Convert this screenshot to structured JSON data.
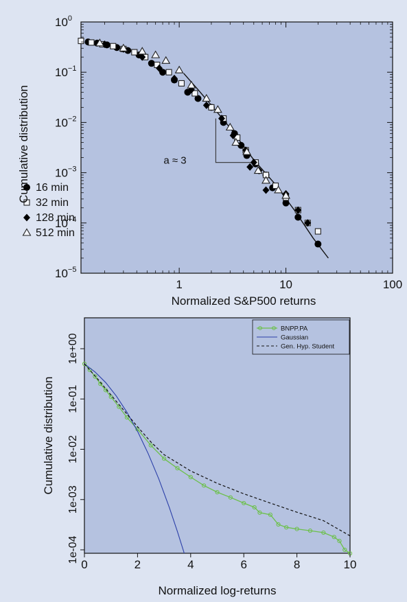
{
  "colors": {
    "page_background": "#dde4f2",
    "plot_background": "#b5c2e0",
    "green": "#6cc04a",
    "blue": "#2b3fa8"
  },
  "chart_data": [
    {
      "type": "scatter",
      "xlabel": "Normalized S&P500 returns",
      "ylabel": "Cumulative distribution",
      "x_scale": "log",
      "y_scale": "log",
      "xlim": [
        0.12,
        100
      ],
      "ylim": [
        1e-05,
        1
      ],
      "x_ticks": [
        {
          "value": 1,
          "label": "1"
        },
        {
          "value": 10,
          "label": "10"
        },
        {
          "value": 100,
          "label": "100"
        }
      ],
      "y_ticks": [
        {
          "value": 1,
          "base": "10",
          "exp": "0"
        },
        {
          "value": 0.1,
          "base": "10",
          "exp": "−1"
        },
        {
          "value": 0.01,
          "base": "10",
          "exp": "−2"
        },
        {
          "value": 0.001,
          "base": "10",
          "exp": "−3"
        },
        {
          "value": 0.0001,
          "base": "10",
          "exp": "−4"
        },
        {
          "value": 1e-05,
          "base": "10",
          "exp": "−5"
        }
      ],
      "grid": false,
      "legend_position": "lower-left",
      "annotation": "a ≈ 3",
      "slope_triangle": {
        "x1": 2.2,
        "x2": 5.5,
        "y_top": 0.012,
        "y_bottom": 0.0016
      },
      "fit_line": {
        "x": [
          1.1,
          1.5,
          2,
          3,
          5,
          8,
          12,
          18,
          25
        ],
        "y": [
          0.095,
          0.045,
          0.022,
          0.0078,
          0.0018,
          0.00058,
          0.00018,
          5e-05,
          2e-05
        ]
      },
      "series": [
        {
          "name": "16 min",
          "marker": "circle",
          "x": [
            0.14,
            0.17,
            0.21,
            0.26,
            0.33,
            0.42,
            0.55,
            0.7,
            0.9,
            1.2,
            1.5,
            2.0,
            2.6,
            3.3,
            3.8,
            4.3,
            5.2,
            6.5,
            7.5,
            10,
            13,
            20
          ],
          "y": [
            0.4,
            0.38,
            0.35,
            0.31,
            0.27,
            0.22,
            0.15,
            0.1,
            0.07,
            0.04,
            0.03,
            0.02,
            0.01,
            0.006,
            0.0035,
            0.0022,
            0.0015,
            0.0009,
            0.0005,
            0.00025,
            0.00013,
            3.8e-05
          ]
        },
        {
          "name": "32 min",
          "marker": "square",
          "x": [
            0.12,
            0.15,
            0.19,
            0.24,
            0.3,
            0.38,
            0.48,
            0.62,
            0.8,
            1.05,
            1.4,
            2.0,
            2.6,
            3.5,
            4.2,
            5.2,
            6.5,
            8,
            10,
            13,
            16,
            20
          ],
          "y": [
            0.42,
            0.39,
            0.36,
            0.33,
            0.29,
            0.25,
            0.2,
            0.14,
            0.1,
            0.06,
            0.038,
            0.02,
            0.012,
            0.005,
            0.0028,
            0.0016,
            0.0009,
            0.00055,
            0.00032,
            0.00018,
            0.0001,
            6.8e-05
          ]
        },
        {
          "name": "128 min",
          "marker": "diamond",
          "x": [
            0.2,
            0.3,
            0.45,
            0.65,
            0.9,
            1.3,
            1.8,
            2.5,
            3.2,
            4.2,
            4.6,
            5.0,
            5.6,
            6.5,
            10,
            13,
            16
          ],
          "y": [
            0.36,
            0.29,
            0.2,
            0.12,
            0.075,
            0.045,
            0.022,
            0.012,
            0.0055,
            0.0028,
            0.0013,
            0.0016,
            0.0011,
            0.00045,
            0.00038,
            0.00018,
            0.0001
          ]
        },
        {
          "name": "512 min",
          "marker": "triangle",
          "x": [
            0.18,
            0.3,
            0.45,
            0.6,
            0.75,
            1.0,
            1.3,
            1.8,
            2.3,
            3.0,
            3.4,
            4.3,
            5.5,
            6.5,
            8.5,
            10
          ],
          "y": [
            0.38,
            0.3,
            0.26,
            0.22,
            0.17,
            0.11,
            0.055,
            0.03,
            0.018,
            0.008,
            0.004,
            0.0026,
            0.0011,
            0.0007,
            0.00045,
            0.00035
          ]
        }
      ]
    },
    {
      "type": "line",
      "xlabel": "Normalized log-returns",
      "ylabel": "Cumulative distribution",
      "y_scale": "log",
      "xlim": [
        0,
        10
      ],
      "ylim": [
        0.0001,
        1
      ],
      "x_ticks": [
        0,
        2,
        4,
        6,
        8,
        10
      ],
      "y_ticks": [
        {
          "value": 1,
          "label": "1e+00"
        },
        {
          "value": 0.1,
          "label": "1e-01"
        },
        {
          "value": 0.01,
          "label": "1e-02"
        },
        {
          "value": 0.001,
          "label": "1e-03"
        },
        {
          "value": 0.0001,
          "label": "1e-04"
        }
      ],
      "grid": false,
      "legend_position": "top-right",
      "series": [
        {
          "name": "BNPP.PA",
          "style": "green-line-circles",
          "x": [
            0,
            0.2,
            0.4,
            0.6,
            0.8,
            1.0,
            1.3,
            1.6,
            2.0,
            2.5,
            3.0,
            3.5,
            4.0,
            4.5,
            5.0,
            5.5,
            6.0,
            6.4,
            6.6,
            7.0,
            7.3,
            7.6,
            8.0,
            8.5,
            9.0,
            9.4,
            9.6,
            9.8,
            10.0
          ],
          "y": [
            0.5,
            0.38,
            0.28,
            0.2,
            0.15,
            0.11,
            0.07,
            0.043,
            0.025,
            0.012,
            0.0065,
            0.0042,
            0.0028,
            0.0019,
            0.0014,
            0.0011,
            0.00085,
            0.0007,
            0.00055,
            0.0005,
            0.00032,
            0.00028,
            0.00026,
            0.00024,
            0.00022,
            0.00018,
            0.00015,
            0.0001,
            8.5e-05
          ]
        },
        {
          "name": "Gaussian",
          "style": "blue-solid",
          "x": [
            0,
            0.4,
            0.8,
            1.2,
            1.6,
            2.0,
            2.4,
            2.8,
            3.2,
            3.5,
            3.8
          ],
          "y": [
            0.5,
            0.345,
            0.212,
            0.115,
            0.0548,
            0.0228,
            0.0082,
            0.00256,
            0.00069,
            0.000233,
            7.23e-05
          ]
        },
        {
          "name": "Gen. Hyp. Student",
          "style": "black-dashed",
          "x": [
            0,
            0.5,
            1.0,
            1.5,
            2.0,
            2.5,
            3.0,
            4.0,
            5.0,
            6.0,
            7.0,
            8.0,
            9.0,
            10.0
          ],
          "y": [
            0.5,
            0.25,
            0.12,
            0.058,
            0.028,
            0.014,
            0.0078,
            0.0037,
            0.0021,
            0.0013,
            0.00085,
            0.00056,
            0.00038,
            0.00019
          ]
        }
      ]
    }
  ]
}
